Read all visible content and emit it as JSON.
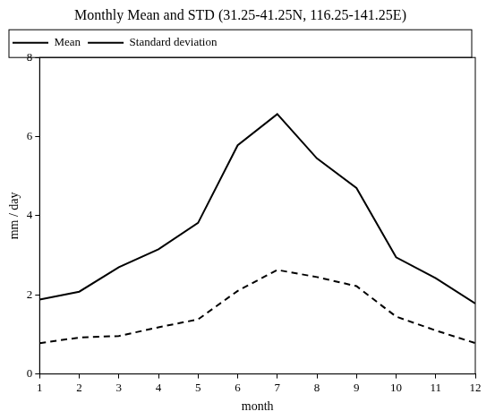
{
  "chart_data": {
    "type": "line",
    "title": "Monthly Mean and STD (31.25-41.25N, 116.25-141.25E)",
    "x_label": "month",
    "y_label": "mm / day",
    "x": [
      1,
      2,
      3,
      4,
      5,
      6,
      7,
      8,
      9,
      10,
      11,
      12
    ],
    "series": [
      {
        "name": "Mean",
        "color": "#000000",
        "line_style": "solid",
        "values": [
          1.88,
          2.08,
          2.7,
          3.15,
          3.82,
          5.78,
          6.57,
          5.45,
          4.7,
          2.95,
          2.42,
          1.78
        ]
      },
      {
        "name": "Standard deviation",
        "color": "#000000",
        "line_style": "dashed",
        "values": [
          0.78,
          0.92,
          0.96,
          1.18,
          1.38,
          2.1,
          2.63,
          2.45,
          2.22,
          1.45,
          1.1,
          0.78
        ]
      }
    ],
    "xlim": [
      1,
      12
    ],
    "xticks": [
      1,
      2,
      3,
      4,
      5,
      6,
      7,
      8,
      9,
      10,
      11,
      12
    ],
    "ylim": [
      0,
      8
    ],
    "yticks": [
      0,
      2,
      4,
      6,
      8
    ],
    "grid": false,
    "legend": "upper left"
  }
}
